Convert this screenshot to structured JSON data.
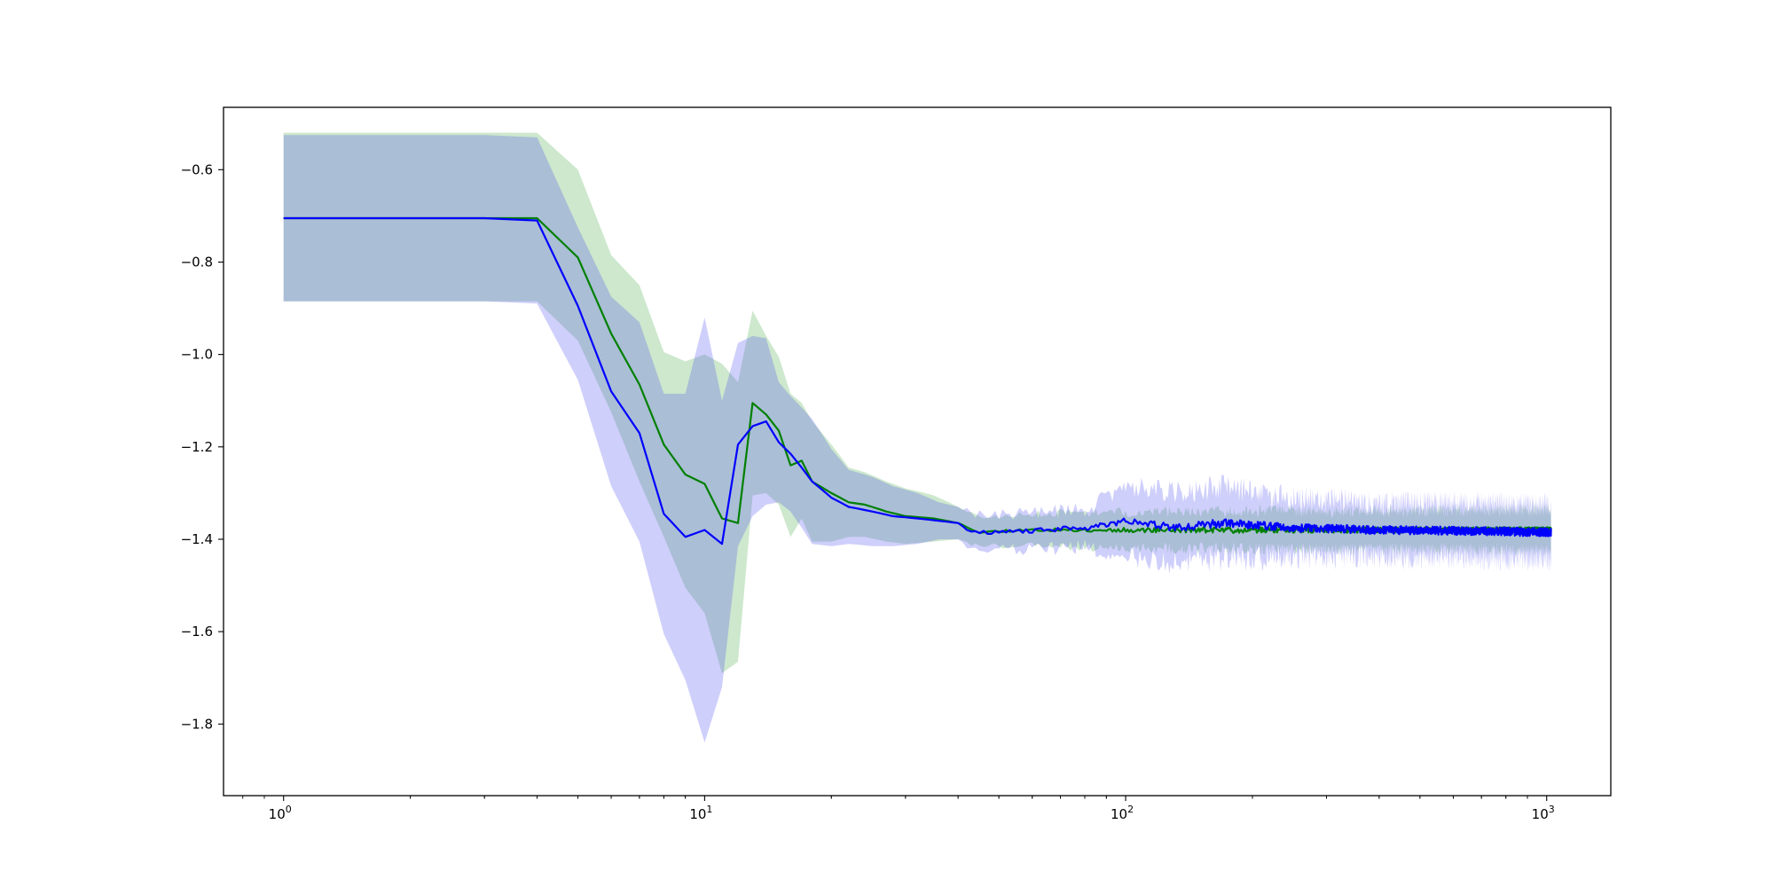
{
  "chart_data": {
    "type": "line",
    "title": "",
    "xlabel": "",
    "ylabel": "",
    "x_scale": "log",
    "xlim": [
      0.72,
      1420
    ],
    "ylim": [
      -1.955,
      -0.465
    ],
    "grid": false,
    "legend": "none",
    "x_ticks": [
      {
        "value": 1,
        "base": "10",
        "exp": "0"
      },
      {
        "value": 10,
        "base": "10",
        "exp": "1"
      },
      {
        "value": 100,
        "base": "10",
        "exp": "2"
      },
      {
        "value": 1000,
        "base": "10",
        "exp": "3"
      }
    ],
    "y_ticks": [
      {
        "value": -0.6,
        "label": "−0.6"
      },
      {
        "value": -0.8,
        "label": "−0.8"
      },
      {
        "value": -1.0,
        "label": "−1.0"
      },
      {
        "value": -1.2,
        "label": "−1.2"
      },
      {
        "value": -1.4,
        "label": "−1.4"
      },
      {
        "value": -1.6,
        "label": "−1.6"
      },
      {
        "value": -1.8,
        "label": "−1.8"
      }
    ],
    "series": [
      {
        "color": "#008000",
        "band_color": "#2ca02c",
        "band_opacity": 0.24,
        "points": [
          [
            1,
            -0.705,
            -0.52,
            -0.885
          ],
          [
            3,
            -0.705,
            -0.52,
            -0.885
          ],
          [
            4,
            -0.705,
            -0.52,
            -0.885
          ],
          [
            5,
            -0.79,
            -0.6,
            -0.97
          ],
          [
            6,
            -0.955,
            -0.785,
            -1.125
          ],
          [
            7,
            -1.065,
            -0.85,
            -1.275
          ],
          [
            8,
            -1.195,
            -0.995,
            -1.395
          ],
          [
            9,
            -1.26,
            -1.015,
            -1.505
          ],
          [
            10,
            -1.28,
            -1.0,
            -1.56
          ],
          [
            11,
            -1.355,
            -1.02,
            -1.69
          ],
          [
            12,
            -1.365,
            -1.06,
            -1.665
          ],
          [
            13,
            -1.105,
            -0.905,
            -1.305
          ],
          [
            14,
            -1.13,
            -0.96,
            -1.3
          ],
          [
            15,
            -1.165,
            -1.005,
            -1.325
          ],
          [
            16,
            -1.24,
            -1.085,
            -1.395
          ],
          [
            17,
            -1.23,
            -1.105,
            -1.355
          ],
          [
            18,
            -1.275,
            -1.145,
            -1.405
          ],
          [
            20,
            -1.3,
            -1.195,
            -1.405
          ],
          [
            22,
            -1.32,
            -1.245,
            -1.395
          ],
          [
            24,
            -1.325,
            -1.255,
            -1.395
          ],
          [
            27,
            -1.34,
            -1.275,
            -1.405
          ],
          [
            30,
            -1.35,
            -1.29,
            -1.41
          ],
          [
            35,
            -1.355,
            -1.305,
            -1.405
          ],
          [
            40,
            -1.365,
            -1.33,
            -1.4
          ],
          [
            45,
            -1.385,
            -1.355,
            -1.415
          ],
          [
            55,
            -1.38,
            -1.35,
            -1.41
          ],
          [
            70,
            -1.38,
            -1.345,
            -1.415
          ],
          [
            1024,
            -1.38,
            -1.34,
            -1.42
          ]
        ],
        "noise": {
          "x_start": 42,
          "amp_line": 0.006,
          "amp_band": 0.014,
          "seed": 11
        }
      },
      {
        "color": "#0000ff",
        "band_color": "#4444ee",
        "band_opacity": 0.26,
        "points": [
          [
            1,
            -0.705,
            -0.525,
            -0.885
          ],
          [
            3,
            -0.705,
            -0.525,
            -0.885
          ],
          [
            4,
            -0.71,
            -0.53,
            -0.89
          ],
          [
            5,
            -0.895,
            -0.725,
            -1.055
          ],
          [
            6,
            -1.08,
            -0.875,
            -1.285
          ],
          [
            7,
            -1.17,
            -0.93,
            -1.405
          ],
          [
            8,
            -1.345,
            -1.085,
            -1.605
          ],
          [
            9,
            -1.395,
            -1.085,
            -1.705
          ],
          [
            10,
            -1.38,
            -0.92,
            -1.84
          ],
          [
            11,
            -1.41,
            -1.1,
            -1.72
          ],
          [
            12,
            -1.195,
            -0.975,
            -1.415
          ],
          [
            13,
            -1.155,
            -0.96,
            -1.35
          ],
          [
            14,
            -1.145,
            -0.965,
            -1.325
          ],
          [
            15,
            -1.19,
            -1.06,
            -1.32
          ],
          [
            16,
            -1.215,
            -1.09,
            -1.34
          ],
          [
            18,
            -1.275,
            -1.14,
            -1.41
          ],
          [
            20,
            -1.31,
            -1.205,
            -1.415
          ],
          [
            22,
            -1.33,
            -1.25,
            -1.41
          ],
          [
            25,
            -1.34,
            -1.265,
            -1.415
          ],
          [
            28,
            -1.35,
            -1.285,
            -1.415
          ],
          [
            32,
            -1.355,
            -1.3,
            -1.41
          ],
          [
            36,
            -1.36,
            -1.32,
            -1.4
          ],
          [
            40,
            -1.365,
            -1.33,
            -1.4
          ],
          [
            43,
            -1.385,
            -1.35,
            -1.42
          ],
          [
            50,
            -1.385,
            -1.35,
            -1.42
          ],
          [
            65,
            -1.38,
            -1.345,
            -1.415
          ],
          [
            80,
            -1.375,
            -1.34,
            -1.41
          ],
          [
            100,
            -1.36,
            -1.29,
            -1.43
          ],
          [
            130,
            -1.375,
            -1.305,
            -1.445
          ],
          [
            170,
            -1.365,
            -1.295,
            -1.435
          ],
          [
            250,
            -1.375,
            -1.32,
            -1.43
          ],
          [
            400,
            -1.38,
            -1.33,
            -1.43
          ],
          [
            1024,
            -1.385,
            -1.335,
            -1.435
          ]
        ],
        "noise": {
          "x_start": 42,
          "amp_line": 0.009,
          "amp_band": 0.028,
          "seed": 29
        }
      }
    ]
  }
}
